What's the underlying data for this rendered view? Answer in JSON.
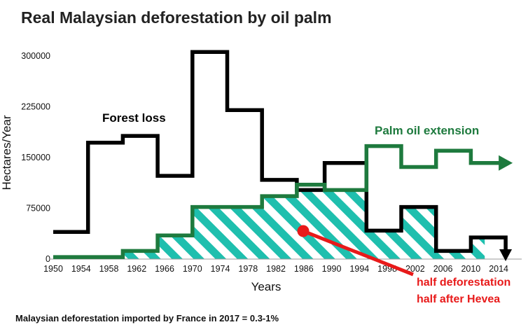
{
  "chart_data": {
    "type": "line",
    "title": "Real Malaysian deforestation by oil palm",
    "xlabel": "Years",
    "ylabel": "Hectares/Year",
    "x_ticks": [
      "1950",
      "1954",
      "1958",
      "1962",
      "1966",
      "1970",
      "1974",
      "1978",
      "1982",
      "1986",
      "1990",
      "1994",
      "1998",
      "2002",
      "2006",
      "2010",
      "2014"
    ],
    "y_ticks": [
      0,
      75000,
      150000,
      225000,
      300000
    ],
    "y_tick_labels": [
      "0",
      "75000",
      "150000",
      "225000",
      "300000"
    ],
    "xlim": [
      1950,
      2016
    ],
    "ylim": [
      0,
      310000
    ],
    "series": [
      {
        "name": "Forest loss",
        "color": "#000000",
        "steps": [
          [
            1950,
            1955,
            40000
          ],
          [
            1955,
            1960,
            172000
          ],
          [
            1960,
            1965,
            182000
          ],
          [
            1965,
            1970,
            123000
          ],
          [
            1970,
            1975,
            306000
          ],
          [
            1975,
            1980,
            220000
          ],
          [
            1980,
            1985,
            117000
          ],
          [
            1985,
            1989,
            102000
          ],
          [
            1989,
            1995,
            142000
          ],
          [
            1995,
            2000,
            42000
          ],
          [
            2000,
            2005,
            77000
          ],
          [
            2005,
            2010,
            12000
          ],
          [
            2010,
            2015,
            32000
          ]
        ]
      },
      {
        "name": "Palm oil extension",
        "color": "#1e7a3e",
        "steps": [
          [
            1950,
            1960,
            3000
          ],
          [
            1960,
            1965,
            12000
          ],
          [
            1965,
            1970,
            35000
          ],
          [
            1970,
            1980,
            77000
          ],
          [
            1980,
            1985,
            93000
          ],
          [
            1985,
            1989,
            110000
          ],
          [
            1989,
            1995,
            102000
          ],
          [
            1995,
            2000,
            167000
          ],
          [
            2000,
            2005,
            136000
          ],
          [
            2005,
            2010,
            160000
          ],
          [
            2010,
            2014,
            142000
          ]
        ]
      }
    ],
    "annotations": {
      "forest_loss_label": "Forest loss",
      "palm_label": "Palm oil extension",
      "note_line1": "half deforestation",
      "note_line2": "half after Hevea",
      "note_color": "#e81a1a",
      "hatch_color": "#1fbfae"
    },
    "footer": "Malaysian deforestation imported by France in 2017  = 0.3-1%"
  }
}
